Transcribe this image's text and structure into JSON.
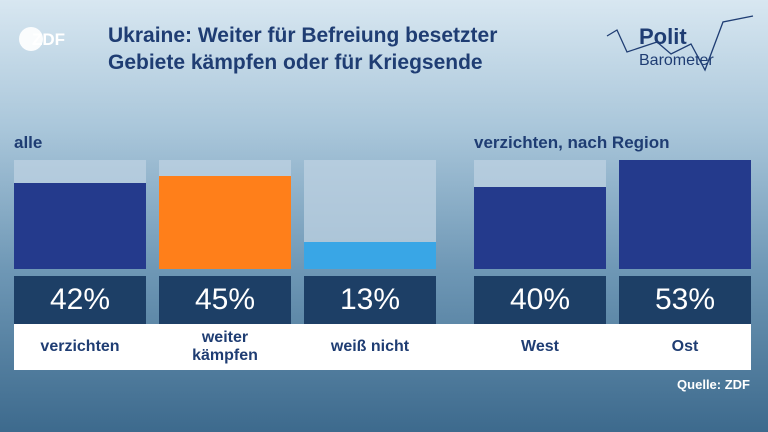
{
  "brand": {
    "logo_text": "ZDF",
    "politbarometer_line1": "Polit",
    "politbarometer_line2": "Barometer"
  },
  "title": "Ukraine: Weiter für Befreiung besetzter Gebiete kämpfen oder für Kriegsende",
  "source": "Quelle: ZDF",
  "colors": {
    "dark_blue": "#243a8c",
    "orange": "#ff7f1a",
    "light_blue": "#39a6e6",
    "box": "#1d3f66"
  },
  "chart_data": [
    {
      "type": "bar",
      "title": "alle",
      "categories": [
        "verzichten",
        "weiter kämpfen",
        "weiß nicht"
      ],
      "values": [
        42,
        45,
        13
      ],
      "value_labels": [
        "42%",
        "45%",
        "13%"
      ],
      "label_lines": [
        [
          "verzichten"
        ],
        [
          "weiter",
          "kämpfen"
        ],
        [
          "weiß nicht"
        ]
      ],
      "colors": [
        "#243a8c",
        "#ff7f1a",
        "#39a6e6"
      ],
      "ylim": [
        0,
        53
      ]
    },
    {
      "type": "bar",
      "title": "verzichten, nach Region",
      "categories": [
        "West",
        "Ost"
      ],
      "values": [
        40,
        53
      ],
      "value_labels": [
        "40%",
        "53%"
      ],
      "label_lines": [
        [
          "West"
        ],
        [
          "Ost"
        ]
      ],
      "colors": [
        "#243a8c",
        "#243a8c"
      ],
      "ylim": [
        0,
        53
      ]
    }
  ]
}
